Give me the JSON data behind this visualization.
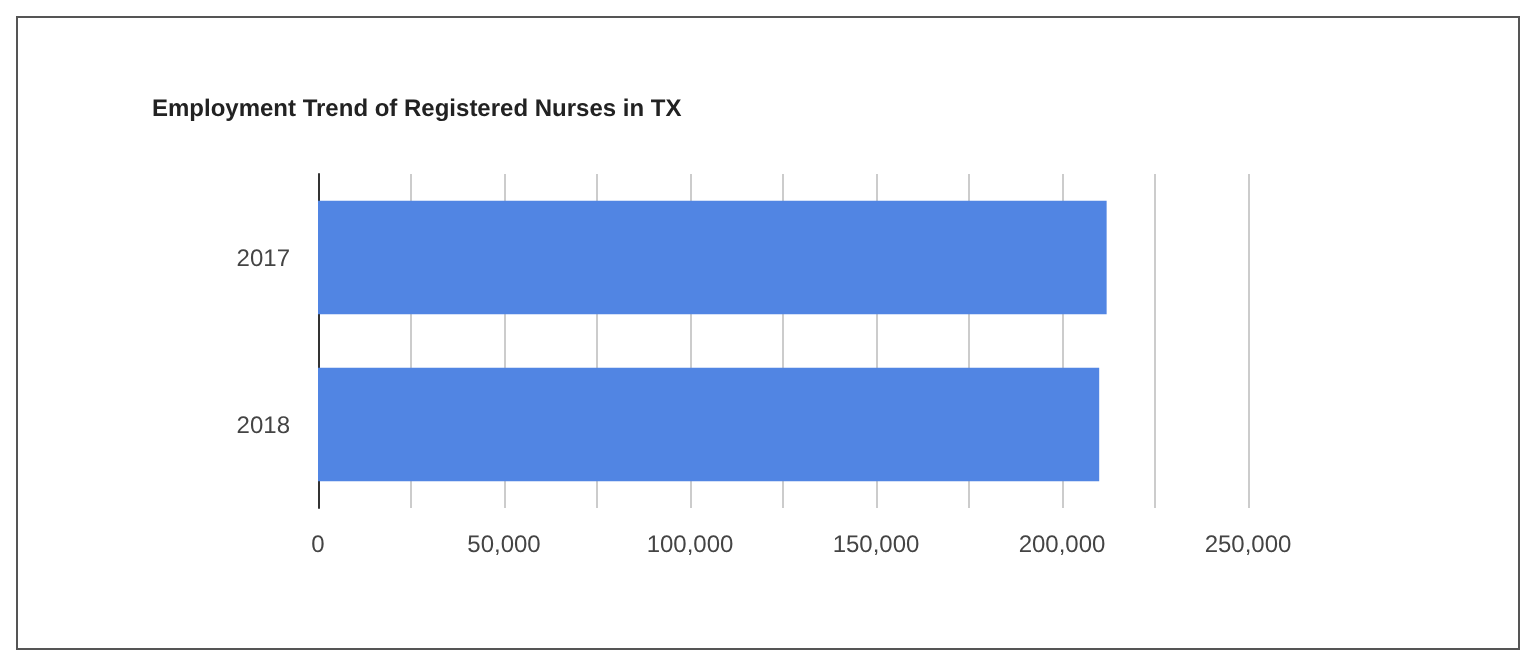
{
  "chart_data": {
    "type": "bar",
    "orientation": "horizontal",
    "title": "Employment Trend of Registered Nurses in TX",
    "categories": [
      "2017",
      "2018"
    ],
    "series": [
      {
        "color": "#5185e3",
        "values": [
          212000,
          210000
        ]
      }
    ],
    "xlim": [
      0,
      250000
    ],
    "xticks": [
      0,
      {
        "value": 25000,
        "label": null
      },
      {
        "value": 50000,
        "label": "50,000"
      },
      {
        "value": 75000,
        "label": null
      },
      {
        "value": 100000,
        "label": "100,000"
      },
      {
        "value": 125000,
        "label": null
      },
      {
        "value": 150000,
        "label": "150,000"
      },
      {
        "value": 175000,
        "label": null
      },
      {
        "value": 200000,
        "label": "200,000"
      },
      {
        "value": 225000,
        "label": null
      },
      {
        "value": 250000,
        "label": "250,000"
      }
    ],
    "grid": "x"
  }
}
